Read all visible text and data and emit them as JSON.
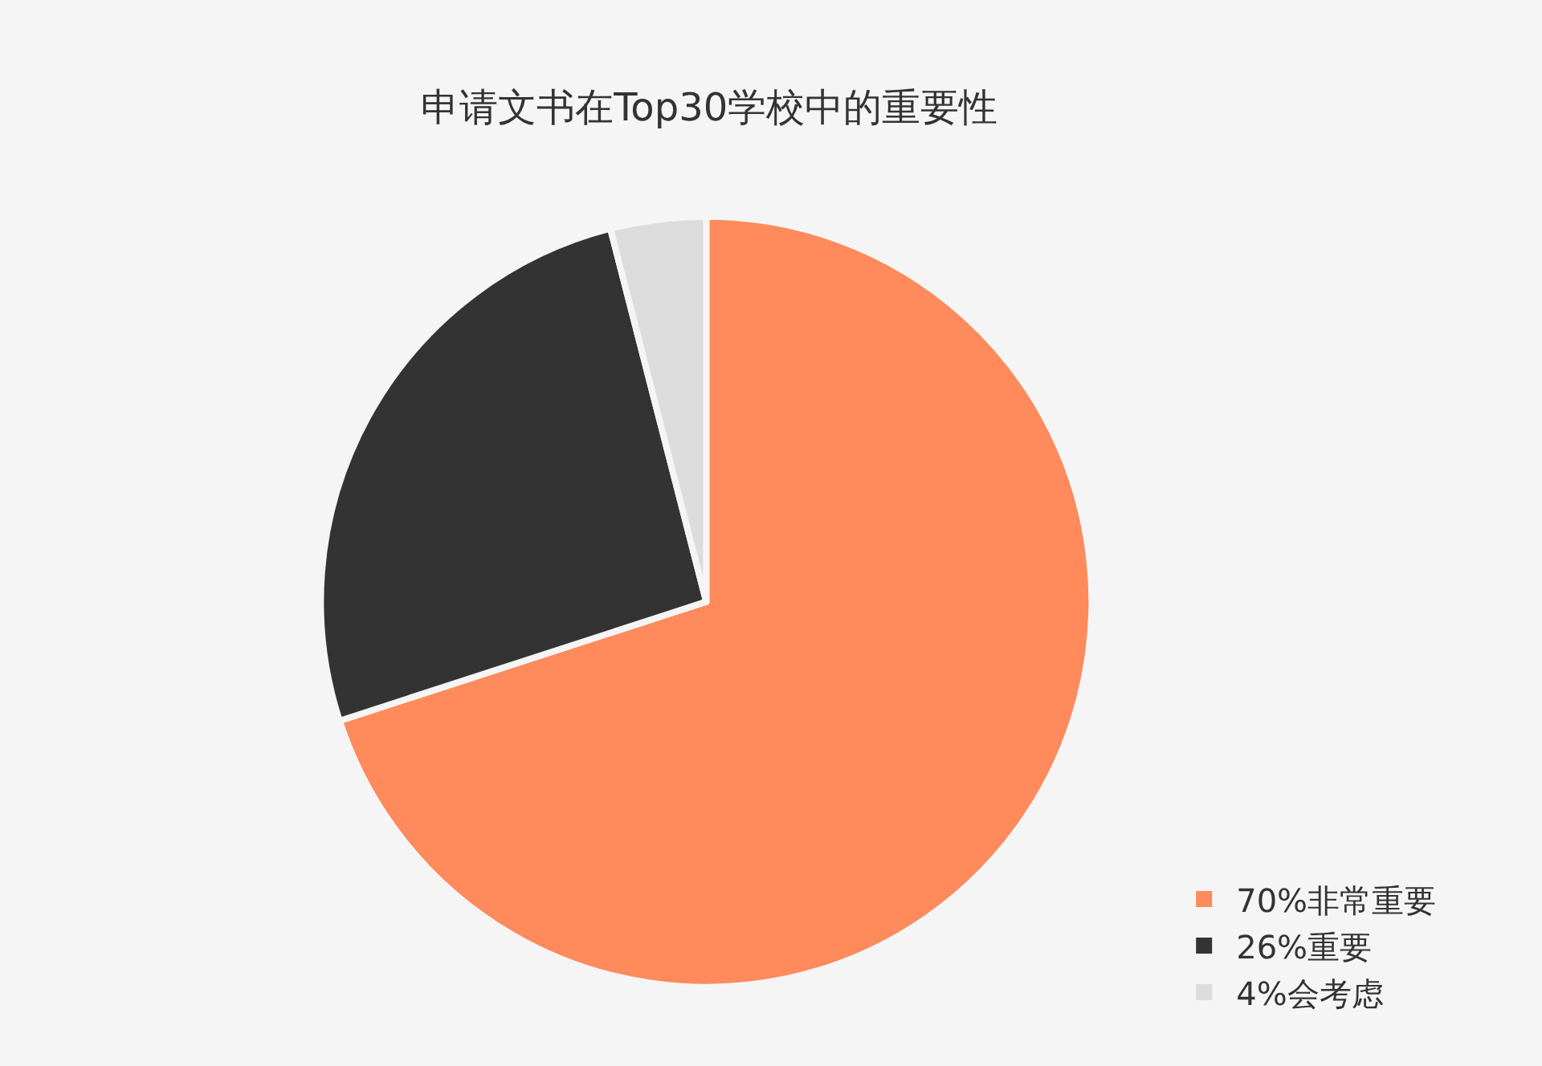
{
  "chart_data": {
    "type": "pie",
    "title": "申请文书在Top30学校中的重要性",
    "categories": [
      "70%非常重要",
      "26%重要",
      "4%会考虑"
    ],
    "values": [
      70,
      26,
      4
    ],
    "colors": [
      "#ff8a5c",
      "#333333",
      "#dcdcdc"
    ],
    "legend": "bottom right"
  }
}
